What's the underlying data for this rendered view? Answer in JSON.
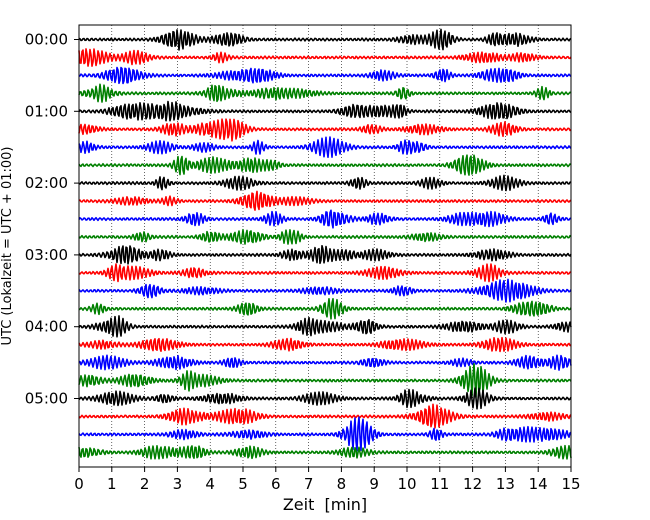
{
  "chart_data": {
    "type": "line",
    "title": "",
    "xlabel": "Zeit  [min]",
    "ylabel": "UTC (Lokalzeit = UTC + 01:00)",
    "xlim": [
      0,
      15
    ],
    "x_ticks": [
      "0",
      "1",
      "2",
      "3",
      "4",
      "5",
      "6",
      "7",
      "8",
      "9",
      "10",
      "11",
      "12",
      "13",
      "14",
      "15"
    ],
    "y_ticks": [
      "00:00",
      "01:00",
      "02:00",
      "03:00",
      "04:00",
      "05:00"
    ],
    "trace_interval_min": 15,
    "trace_colors": [
      "#000000",
      "#ff0000",
      "#0000ff",
      "#008000"
    ],
    "grid": "vertical dotted lines at each minute",
    "traces": [
      {
        "start": "00:00"
      },
      {
        "start": "00:15"
      },
      {
        "start": "00:30"
      },
      {
        "start": "00:45"
      },
      {
        "start": "01:00"
      },
      {
        "start": "01:15"
      },
      {
        "start": "01:30"
      },
      {
        "start": "01:45"
      },
      {
        "start": "02:00"
      },
      {
        "start": "02:15"
      },
      {
        "start": "02:30"
      },
      {
        "start": "02:45"
      },
      {
        "start": "03:00"
      },
      {
        "start": "03:15"
      },
      {
        "start": "03:30"
      },
      {
        "start": "03:45"
      },
      {
        "start": "04:00"
      },
      {
        "start": "04:15"
      },
      {
        "start": "04:30"
      },
      {
        "start": "04:45"
      },
      {
        "start": "05:00"
      },
      {
        "start": "05:15"
      },
      {
        "start": "05:30"
      },
      {
        "start": "05:45"
      }
    ]
  }
}
